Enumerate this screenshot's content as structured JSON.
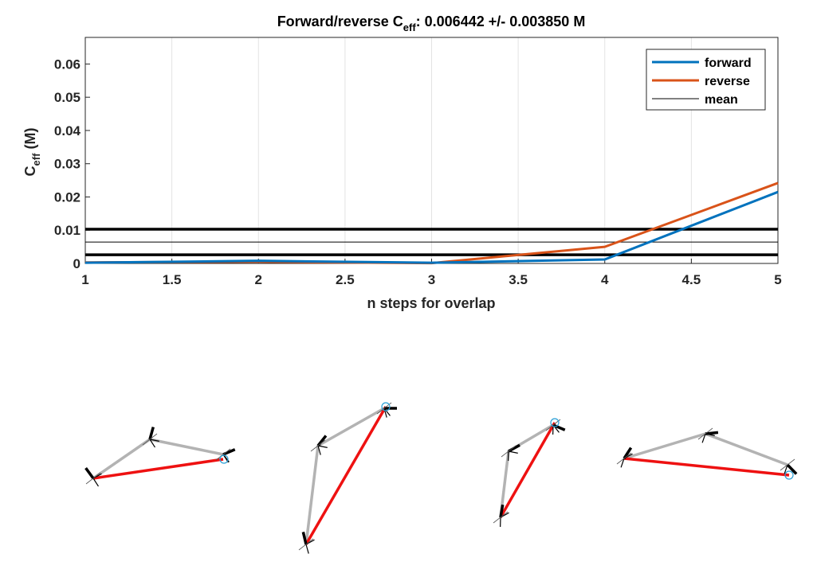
{
  "chart_data": {
    "type": "line",
    "title": {
      "prefix": "Forward/reverse C",
      "subscript": "eff",
      "suffix": ": 0.006442 +/- 0.003850 M"
    },
    "xlabel": "n steps for overlap",
    "ylabel": {
      "prefix": "C",
      "subscript": "eff",
      "suffix": " (M)"
    },
    "xlim": [
      1,
      5
    ],
    "ylim": [
      0,
      0.068
    ],
    "xticks": [
      "1",
      "1.5",
      "2",
      "2.5",
      "3",
      "3.5",
      "4",
      "4.5",
      "5"
    ],
    "yticks": [
      "0",
      "0.01",
      "0.02",
      "0.03",
      "0.04",
      "0.05",
      "0.06"
    ],
    "grid": "vertical",
    "legend_position": "top-right",
    "series": [
      {
        "name": "forward",
        "color": "#0072BD",
        "x": [
          1,
          2,
          3,
          4,
          5
        ],
        "y": [
          0.0002,
          0.0008,
          0.0002,
          0.0012,
          0.0215
        ]
      },
      {
        "name": "reverse",
        "color": "#D95319",
        "x": [
          1,
          2,
          3,
          4,
          5
        ],
        "y": [
          0.0003,
          0.0005,
          0.0001,
          0.005,
          0.0242
        ]
      },
      {
        "name": "mean",
        "color": "#000000",
        "x": [
          1,
          5
        ],
        "y": [
          0.006442,
          0.006442
        ]
      }
    ],
    "bounds": [
      0.010292,
      0.002592
    ],
    "diagrams": [
      {
        "gray": [
          [
            117,
            601
          ],
          [
            188,
            552
          ],
          [
            280,
            571
          ]
        ],
        "red": [
          [
            117,
            601
          ],
          [
            280,
            577
          ]
        ],
        "circle": [
          281,
          577
        ],
        "junctions": [
          [
            117,
            601
          ],
          [
            188,
            552
          ],
          [
            280,
            571
          ]
        ]
      },
      {
        "gray": [
          [
            384,
            684
          ],
          [
            399,
            560
          ],
          [
            482,
            513
          ]
        ],
        "red": [
          [
            384,
            684
          ],
          [
            484,
            511
          ]
        ],
        "circle": [
          484,
          511
        ],
        "junctions": [
          [
            384,
            684
          ],
          [
            399,
            560
          ],
          [
            482,
            513
          ]
        ]
      },
      {
        "gray": [
          [
            628,
            650
          ],
          [
            638,
            567
          ],
          [
            694,
            534
          ]
        ],
        "red": [
          [
            628,
            650
          ],
          [
            696,
            531
          ]
        ],
        "circle": [
          696,
          531
        ],
        "junctions": [
          [
            628,
            650
          ],
          [
            638,
            567
          ],
          [
            694,
            534
          ]
        ]
      },
      {
        "gray": [
          [
            783,
            576
          ],
          [
            885,
            545
          ],
          [
            988,
            584
          ]
        ],
        "red": [
          [
            783,
            576
          ],
          [
            990,
            597
          ]
        ],
        "circle": [
          990,
          597
        ],
        "junctions": [
          [
            783,
            576
          ],
          [
            885,
            545
          ],
          [
            988,
            584
          ]
        ]
      }
    ]
  }
}
